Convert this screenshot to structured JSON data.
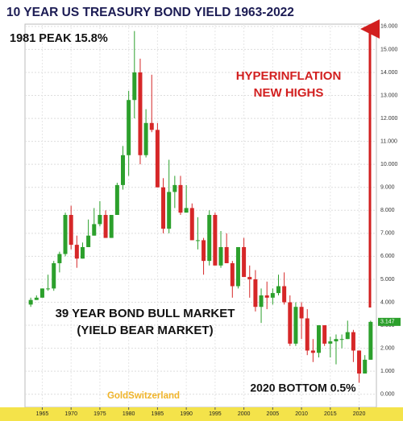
{
  "chart_data": {
    "type": "candlestick",
    "title": "10 YEAR US TREASURY BOND YIELD  1963-2022",
    "annotations": [
      {
        "text": "1981 PEAK  15.8%"
      },
      {
        "text": "HYPERINFLATION"
      },
      {
        "text": "NEW HIGHS"
      },
      {
        "text": "39 YEAR BOND BULL MARKET"
      },
      {
        "text": "(YIELD BEAR MARKET)"
      },
      {
        "text": "2020 BOTTOM 0.5%"
      },
      {
        "text": "GoldSwitzerland"
      }
    ],
    "x": [
      1963,
      1964,
      1965,
      1966,
      1967,
      1968,
      1969,
      1970,
      1971,
      1972,
      1973,
      1974,
      1975,
      1976,
      1977,
      1978,
      1979,
      1980,
      1981,
      1982,
      1983,
      1984,
      1985,
      1986,
      1987,
      1988,
      1989,
      1990,
      1991,
      1992,
      1993,
      1994,
      1995,
      1996,
      1997,
      1998,
      1999,
      2000,
      2001,
      2002,
      2003,
      2004,
      2005,
      2006,
      2007,
      2008,
      2009,
      2010,
      2011,
      2012,
      2013,
      2014,
      2015,
      2016,
      2017,
      2018,
      2019,
      2020,
      2021,
      2022
    ],
    "open": [
      3.9,
      4.1,
      4.2,
      4.6,
      4.6,
      5.7,
      6.1,
      7.8,
      6.5,
      5.9,
      6.4,
      6.9,
      7.4,
      7.8,
      6.8,
      7.8,
      9.1,
      10.4,
      12.8,
      14.0,
      10.4,
      11.8,
      11.5,
      9.0,
      7.2,
      8.8,
      9.1,
      7.9,
      8.1,
      6.7,
      6.7,
      5.8,
      7.8,
      5.6,
      6.4,
      5.7,
      4.7,
      6.4,
      5.1,
      5.0,
      3.8,
      4.3,
      4.2,
      4.4,
      4.7,
      4.0,
      2.2,
      3.8,
      3.3,
      1.9,
      1.8,
      3.0,
      2.2,
      2.3,
      2.4,
      2.4,
      2.7,
      1.9,
      0.9,
      1.5
    ],
    "high": [
      4.2,
      4.3,
      4.6,
      5.2,
      5.8,
      6.2,
      7.9,
      8.2,
      6.9,
      6.6,
      7.6,
      8.1,
      8.4,
      8.0,
      7.8,
      9.2,
      10.8,
      13.2,
      15.8,
      14.6,
      12.4,
      13.9,
      11.8,
      9.4,
      10.2,
      9.5,
      9.5,
      9.1,
      8.3,
      7.7,
      6.8,
      8.0,
      7.9,
      7.1,
      7.0,
      5.8,
      6.4,
      6.8,
      5.6,
      5.4,
      4.6,
      4.9,
      4.6,
      5.2,
      5.3,
      4.3,
      4.0,
      4.0,
      3.7,
      2.4,
      3.0,
      3.0,
      2.5,
      2.6,
      2.6,
      3.2,
      2.8,
      1.9,
      1.7,
      3.2
    ],
    "low": [
      3.8,
      4.1,
      4.2,
      4.5,
      4.5,
      5.3,
      6.0,
      6.3,
      5.5,
      5.9,
      6.4,
      6.9,
      7.3,
      6.8,
      6.8,
      7.8,
      8.9,
      9.5,
      12.0,
      10.0,
      10.3,
      11.4,
      9.0,
      7.0,
      7.0,
      8.1,
      7.8,
      7.9,
      6.7,
      6.3,
      5.2,
      5.6,
      5.6,
      5.5,
      5.7,
      4.2,
      4.6,
      5.1,
      4.2,
      3.6,
      3.1,
      3.7,
      3.9,
      4.3,
      3.9,
      2.1,
      2.1,
      2.4,
      1.7,
      1.4,
      1.6,
      2.1,
      1.6,
      1.3,
      2.0,
      2.4,
      1.4,
      0.5,
      0.9,
      1.5
    ],
    "close": [
      4.1,
      4.2,
      4.6,
      4.6,
      5.7,
      6.1,
      7.8,
      6.5,
      5.9,
      6.4,
      6.9,
      7.4,
      7.8,
      6.8,
      7.8,
      9.1,
      10.4,
      12.8,
      14.0,
      10.4,
      11.8,
      11.5,
      9.0,
      7.2,
      8.8,
      9.1,
      7.9,
      8.1,
      6.7,
      6.7,
      5.8,
      7.8,
      5.6,
      6.4,
      5.7,
      4.7,
      6.4,
      5.1,
      5.0,
      3.8,
      4.3,
      4.2,
      4.4,
      4.7,
      4.0,
      2.2,
      3.8,
      3.3,
      1.9,
      1.8,
      3.0,
      2.2,
      2.3,
      2.4,
      2.4,
      2.7,
      1.9,
      0.9,
      1.5,
      3.147
    ],
    "up_color": "#2ca02c",
    "down_color": "#d62728",
    "last_value": 3.147,
    "xlim": [
      1962,
      2023
    ],
    "xticks": [
      1965,
      1970,
      1975,
      1980,
      1985,
      1990,
      1995,
      2000,
      2005,
      2010,
      2015,
      2020
    ],
    "ylim": [
      -0.5,
      16.1
    ],
    "yticks": [
      {
        "value": 0,
        "label": "0.000"
      },
      {
        "value": 1,
        "label": "1.000"
      },
      {
        "value": 2,
        "label": "2.000"
      },
      {
        "value": 3,
        "label": "3.000"
      },
      {
        "value": 4,
        "label": "4.000"
      },
      {
        "value": 5,
        "label": "5.000"
      },
      {
        "value": 6,
        "label": "6.000"
      },
      {
        "value": 7,
        "label": "7.000"
      },
      {
        "value": 8,
        "label": "8.000"
      },
      {
        "value": 9,
        "label": "9.000"
      },
      {
        "value": 10,
        "label": "10.000"
      },
      {
        "value": 11,
        "label": "11.000"
      },
      {
        "value": 12,
        "label": "12.000"
      },
      {
        "value": 13,
        "label": "13.000"
      },
      {
        "value": 14,
        "label": "14.000"
      },
      {
        "value": 15,
        "label": "15.000"
      },
      {
        "value": 16,
        "label": "16.000"
      }
    ],
    "grid": true
  }
}
